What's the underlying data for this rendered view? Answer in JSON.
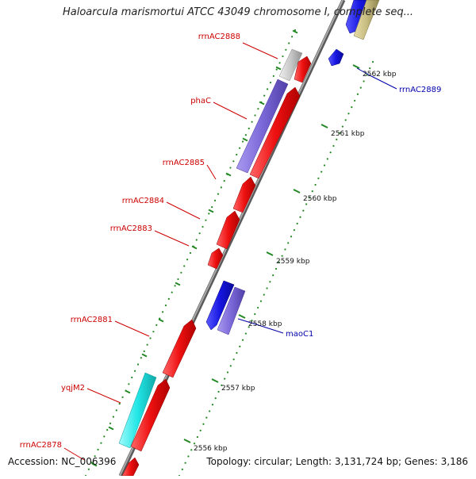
{
  "header": {
    "title": "Haloarcula marismortui ATCC 43049 chromosome I, complete seq..."
  },
  "footer": {
    "accession": "Accession: NC_006396",
    "summary": "Topology: circular; Length: 3,131,724 bp; Genes: 3,186"
  },
  "ticks": [
    {
      "label": "2562 kbp"
    },
    {
      "label": "2561 kbp"
    },
    {
      "label": "2560 kbp"
    },
    {
      "label": "2559 kbp"
    },
    {
      "label": "2558 kbp"
    },
    {
      "label": "2557 kbp"
    },
    {
      "label": "2556 kbp"
    }
  ],
  "gene_labels_left": [
    {
      "name": "rrnAC2888"
    },
    {
      "name": "phaC"
    },
    {
      "name": "rrnAC2885"
    },
    {
      "name": "rrnAC2884"
    },
    {
      "name": "rrnAC2883"
    },
    {
      "name": "rrnAC2881"
    },
    {
      "name": "yqjM2"
    },
    {
      "name": "rrnAC2878"
    }
  ],
  "gene_labels_right": [
    {
      "name": "rrnAC2889"
    },
    {
      "name": "maoC1"
    }
  ],
  "colors": {
    "backbone": "#8c8c8c",
    "forward_gene": "#ee1111",
    "reverse_gene": "#2222dd",
    "purple_gene": "#7b68d8",
    "cyan_gene": "#22e6e6",
    "gray_gene": "#c8c8c8",
    "khaki_gene": "#c8bd80",
    "left_label": "#cc0000",
    "right_label": "#0000aa",
    "tick_dots": "#228822"
  }
}
